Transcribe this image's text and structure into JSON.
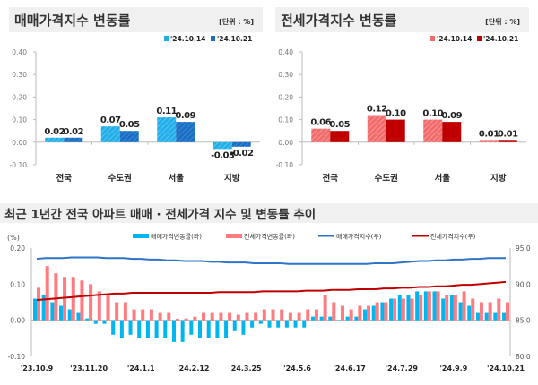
{
  "chart_data": [
    {
      "type": "bar",
      "title": "매매가격지수 변동률",
      "unit": "[단위 : %]",
      "categories": [
        "전국",
        "수도권",
        "서울",
        "지방"
      ],
      "series": [
        {
          "name": "'24.10.14",
          "values": [
            0.02,
            0.07,
            0.11,
            -0.03
          ],
          "color": "#22aee8"
        },
        {
          "name": "'24.10.21",
          "values": [
            0.02,
            0.05,
            0.09,
            -0.02
          ],
          "color": "#1a6fc4"
        }
      ],
      "ylim": [
        -0.1,
        0.4
      ],
      "yticks": [
        "0.40",
        "0.30",
        "0.20",
        "0.10",
        "0.00",
        "-0.10"
      ],
      "legend": "top-right"
    },
    {
      "type": "bar",
      "title": "전세가격지수 변동률",
      "unit": "[단위 : %]",
      "categories": [
        "전국",
        "수도권",
        "서울",
        "지방"
      ],
      "series": [
        {
          "name": "'24.10.14",
          "values": [
            0.06,
            0.12,
            0.1,
            0.01
          ],
          "color": "#f26a6a"
        },
        {
          "name": "'24.10.21",
          "values": [
            0.05,
            0.1,
            0.09,
            0.01
          ],
          "color": "#c00000"
        }
      ],
      "ylim": [
        -0.1,
        0.4
      ],
      "yticks": [
        "0.40",
        "0.30",
        "0.20",
        "0.10",
        "0.00",
        "-0.10"
      ],
      "legend": "top-right"
    },
    {
      "type": "bar+line",
      "title": "최근 1년간 전국 아파트 매매 · 전세가격 지수 및 변동률 추이",
      "ylabel_left": "(%)",
      "xtick_labels": [
        "'23.10.9",
        "'23.11.20",
        "'24.1.1",
        "'24.2.12",
        "'24.3.25",
        "'24.5.6",
        "'24.6.17",
        "'24.7.29",
        "'24.9.9",
        "'24.10.21"
      ],
      "yticks_left": [
        "0.20",
        "0.10",
        "0.00",
        "-0.10"
      ],
      "yticks_right": [
        "95.0",
        "90.0",
        "85.0",
        "80.0"
      ],
      "ylim_left": [
        -0.1,
        0.2
      ],
      "ylim_right": [
        80.0,
        95.0
      ],
      "legend": "top",
      "series": [
        {
          "name": "매매가격변동률(좌)",
          "type": "bar",
          "axis": "left",
          "color": "#00b6f0",
          "values": [
            0.06,
            0.07,
            0.05,
            0.04,
            0.03,
            0.02,
            0.005,
            -0.01,
            -0.01,
            -0.04,
            -0.05,
            -0.04,
            -0.05,
            -0.05,
            -0.05,
            -0.05,
            -0.06,
            -0.06,
            -0.04,
            -0.05,
            -0.05,
            -0.05,
            -0.05,
            -0.03,
            -0.04,
            -0.02,
            -0.01,
            -0.02,
            -0.02,
            -0.02,
            -0.02,
            -0.02,
            0.01,
            0.01,
            0.01,
            0.0,
            0.01,
            0.01,
            0.03,
            0.04,
            0.05,
            0.06,
            0.07,
            0.07,
            0.08,
            0.08,
            0.08,
            0.06,
            0.07,
            0.05,
            0.04,
            0.02,
            0.02,
            0.02,
            0.02
          ]
        },
        {
          "name": "전세가격변동률(좌)",
          "type": "bar",
          "axis": "left",
          "color": "#ff7b80",
          "values": [
            0.09,
            0.15,
            0.13,
            0.12,
            0.12,
            0.11,
            0.1,
            0.08,
            0.07,
            0.05,
            0.05,
            0.03,
            0.03,
            0.03,
            0.02,
            0.02,
            0.004,
            0.005,
            0.01,
            0.02,
            0.02,
            0.02,
            0.02,
            0.015,
            0.02,
            0.02,
            0.03,
            0.03,
            0.03,
            0.02,
            0.02,
            0.03,
            0.03,
            0.07,
            0.05,
            0.04,
            0.03,
            0.04,
            0.04,
            0.05,
            0.05,
            0.06,
            0.06,
            0.06,
            0.07,
            0.08,
            0.08,
            0.07,
            0.07,
            0.08,
            0.06,
            0.05,
            0.05,
            0.06,
            0.05
          ]
        },
        {
          "name": "매매가격지수(우)",
          "type": "line",
          "axis": "right",
          "color": "#2e75c8",
          "values": [
            93.5,
            93.6,
            93.6,
            93.6,
            93.7,
            93.7,
            93.7,
            93.7,
            93.6,
            93.6,
            93.6,
            93.5,
            93.5,
            93.4,
            93.4,
            93.3,
            93.3,
            93.2,
            93.2,
            93.2,
            93.1,
            93.1,
            93.0,
            93.0,
            93.0,
            92.9,
            92.9,
            92.9,
            92.9,
            92.8,
            92.8,
            92.8,
            92.8,
            92.8,
            92.8,
            92.8,
            92.8,
            92.8,
            92.8,
            92.9,
            92.9,
            92.9,
            93.0,
            93.1,
            93.2,
            93.2,
            93.3,
            93.3,
            93.4,
            93.4,
            93.5,
            93.5,
            93.6,
            93.6,
            93.6
          ]
        },
        {
          "name": "전세가격지수(우)",
          "type": "line",
          "axis": "right",
          "color": "#c00000",
          "values": [
            87.8,
            87.9,
            88.0,
            88.1,
            88.2,
            88.3,
            88.4,
            88.5,
            88.6,
            88.7,
            88.7,
            88.8,
            88.8,
            88.8,
            88.8,
            88.8,
            88.8,
            88.8,
            88.8,
            88.8,
            88.8,
            88.9,
            88.9,
            88.9,
            88.9,
            88.9,
            89.0,
            89.0,
            89.0,
            89.0,
            89.0,
            89.1,
            89.1,
            89.1,
            89.2,
            89.2,
            89.2,
            89.3,
            89.3,
            89.3,
            89.4,
            89.4,
            89.5,
            89.5,
            89.6,
            89.6,
            89.7,
            89.7,
            89.8,
            89.9,
            89.9,
            90.0,
            90.1,
            90.2,
            90.3
          ]
        }
      ]
    }
  ]
}
